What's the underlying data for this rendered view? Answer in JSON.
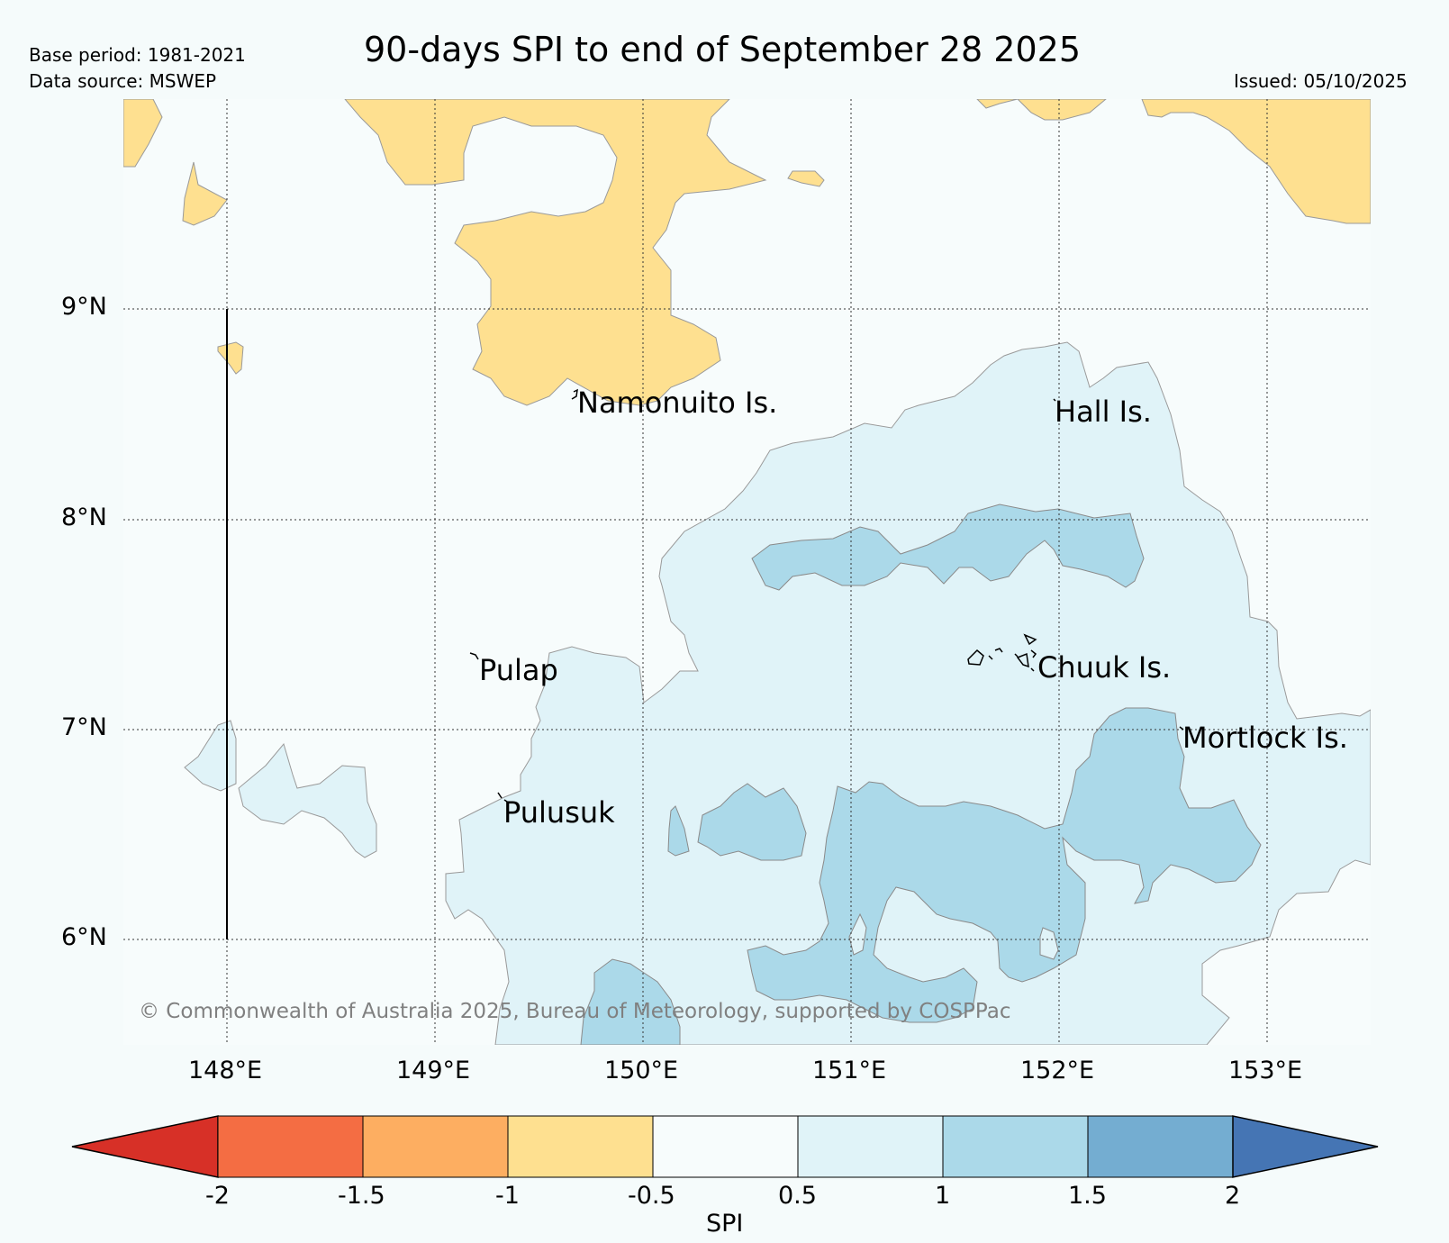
{
  "header": {
    "base_period": "Base period: 1981-2021",
    "data_source": "Data source: MSWEP",
    "title": "90-days SPI to end of September 28 2025",
    "issued": "Issued: 05/10/2025"
  },
  "map": {
    "latitude_labels": [
      "9°N",
      "8°N",
      "7°N",
      "6°N"
    ],
    "longitude_labels": [
      "148°E",
      "149°E",
      "150°E",
      "151°E",
      "152°E",
      "153°E"
    ],
    "places": [
      "Namonuito Is.",
      "Hall Is.",
      "Pulap",
      "Chuuk Is.",
      "Mortlock Is.",
      "Pulusuk"
    ],
    "copyright": "© Commonwealth of Australia 2025, Bureau of Meteorology, supported by COSPPac"
  },
  "colorbar": {
    "label": "SPI",
    "ticks": [
      "-2",
      "-1.5",
      "-1",
      "-0.5",
      "0.5",
      "1",
      "1.5",
      "2"
    ],
    "colors": {
      "below_-2": "#d73027",
      "-2_to_-1.5": "#f46d43",
      "-1.5_to_-1": "#fdae61",
      "-1_to_-0.5": "#fee090",
      "-0.5_to_0.5": "#f7fcfc",
      "0.5_to_1": "#e0f3f8",
      "1_to_1.5": "#abd9e9",
      "1.5_to_2": "#74add1",
      "above_2": "#4575b4"
    }
  }
}
